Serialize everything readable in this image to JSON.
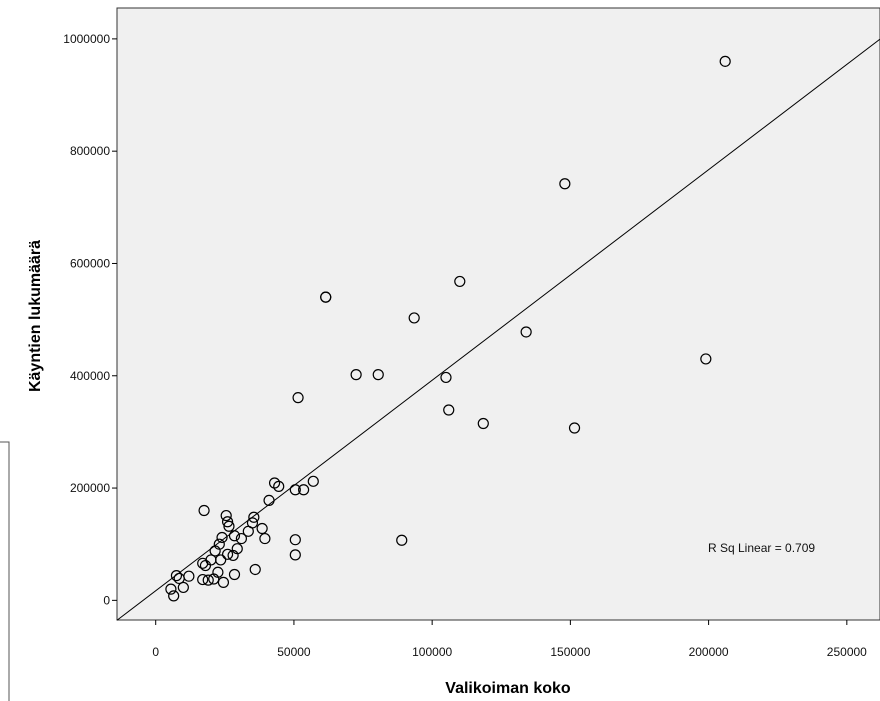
{
  "chart_data": {
    "type": "scatter",
    "xlabel": "Valikoiman koko",
    "ylabel": "Käyntien lukumäärä",
    "xlim": [
      -14000,
      262000
    ],
    "ylim": [
      -35000,
      1055000
    ],
    "x_ticks": [
      0,
      50000,
      100000,
      150000,
      200000,
      250000
    ],
    "y_ticks": [
      0,
      200000,
      400000,
      600000,
      800000,
      1000000
    ],
    "x_tick_labels": [
      "0",
      "50000",
      "100000",
      "150000",
      "200000",
      "250000"
    ],
    "y_tick_labels": [
      "0",
      "200000",
      "400000",
      "600000",
      "800000",
      "1000000"
    ],
    "annotation": "R Sq Linear = 0.709",
    "fit_line": {
      "slope": 3.75,
      "intercept": 17000
    },
    "colors": {
      "plot_bg": "#f0f0f0",
      "marker": "#000000",
      "line": "#000000"
    },
    "points": [
      [
        206000,
        960000
      ],
      [
        148000,
        742000
      ],
      [
        110000,
        568000
      ],
      [
        61500,
        540000
      ],
      [
        61500,
        540000
      ],
      [
        93500,
        503000
      ],
      [
        134000,
        478000
      ],
      [
        199000,
        430000
      ],
      [
        72500,
        402000
      ],
      [
        80500,
        402000
      ],
      [
        105000,
        397000
      ],
      [
        51500,
        361000
      ],
      [
        106000,
        339000
      ],
      [
        118500,
        315000
      ],
      [
        151500,
        307000
      ],
      [
        89000,
        107000
      ],
      [
        57000,
        212000
      ],
      [
        43000,
        209000
      ],
      [
        44500,
        203000
      ],
      [
        50500,
        197000
      ],
      [
        53500,
        197000
      ],
      [
        41000,
        178000
      ],
      [
        17500,
        160000
      ],
      [
        25500,
        151000
      ],
      [
        35500,
        148000
      ],
      [
        26000,
        140000
      ],
      [
        35000,
        138000
      ],
      [
        26500,
        132000
      ],
      [
        38500,
        128000
      ],
      [
        33500,
        123000
      ],
      [
        28500,
        115000
      ],
      [
        24000,
        112000
      ],
      [
        31000,
        110000
      ],
      [
        39500,
        110000
      ],
      [
        50500,
        108000
      ],
      [
        23000,
        100000
      ],
      [
        29500,
        92000
      ],
      [
        21500,
        88000
      ],
      [
        26000,
        82000
      ],
      [
        28000,
        80000
      ],
      [
        50500,
        81000
      ],
      [
        20000,
        72000
      ],
      [
        23500,
        72000
      ],
      [
        17000,
        66000
      ],
      [
        18000,
        62000
      ],
      [
        36000,
        55000
      ],
      [
        22500,
        50000
      ],
      [
        28500,
        46000
      ],
      [
        7500,
        44000
      ],
      [
        12000,
        43000
      ],
      [
        8500,
        39000
      ],
      [
        17000,
        37000
      ],
      [
        19000,
        36000
      ],
      [
        21000,
        38000
      ],
      [
        24500,
        32000
      ],
      [
        10000,
        23000
      ],
      [
        5500,
        20000
      ],
      [
        6500,
        8000
      ]
    ]
  }
}
